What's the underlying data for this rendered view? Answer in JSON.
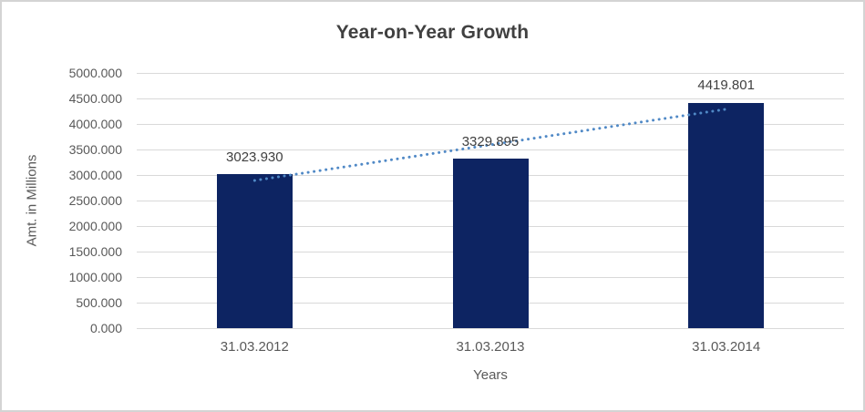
{
  "figure": {
    "background": "#ffffff",
    "border_color": "#d4d4d4"
  },
  "chart_data": {
    "type": "bar",
    "title": "Year-on-Year Growth",
    "xlabel": "Years",
    "ylabel": "Amt. in Millions",
    "categories": [
      "31.03.2012",
      "31.03.2013",
      "31.03.2014"
    ],
    "values": [
      3023.93,
      3329.895,
      4419.801
    ],
    "value_labels": [
      "3023.930",
      "3329.895",
      "4419.801"
    ],
    "ylim": [
      0,
      5000
    ],
    "ytick_step": 500,
    "ytick_labels": [
      "0.000",
      "500.000",
      "1000.000",
      "1500.000",
      "2000.000",
      "2500.000",
      "3000.000",
      "3500.000",
      "4000.000",
      "4500.000",
      "5000.000"
    ],
    "grid": "horizontal",
    "legend": "none",
    "colors": {
      "bar": "#0d2462",
      "trendline": "#5089c6",
      "gridline": "#d9d9d9",
      "title_text": "#404040",
      "tick_text": "#595959",
      "data_label_text": "#404040"
    },
    "trendline": {
      "type": "linear",
      "style": "dotted",
      "color": "#5089c6"
    }
  }
}
